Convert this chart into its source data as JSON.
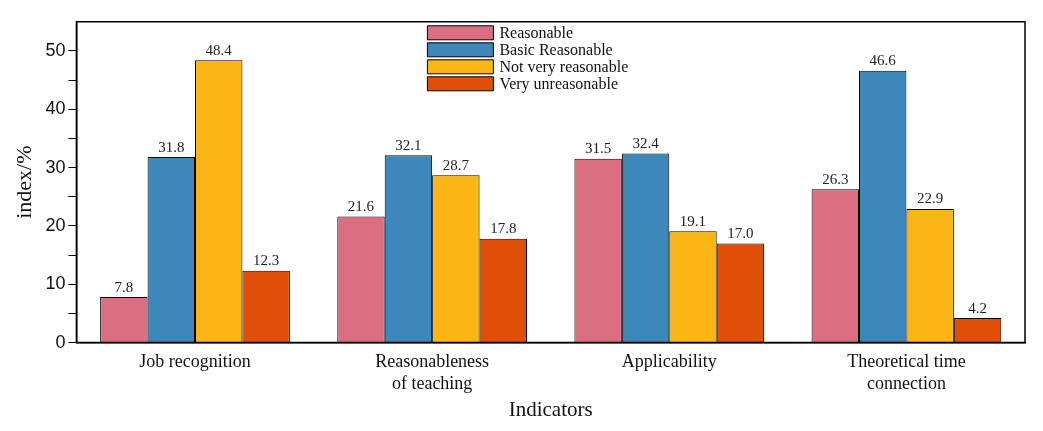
{
  "chart_data": {
    "type": "bar",
    "xlabel": "Indicators",
    "ylabel": "index/%",
    "categories": [
      "Job recognition",
      "Reasonableness of teaching",
      "Applicability",
      "Theoretical time connection"
    ],
    "series": [
      {
        "name": "Reasonable",
        "color": "#dc6e82",
        "values": [
          7.8,
          21.6,
          31.5,
          26.3
        ],
        "value_labels": [
          "7.8",
          "21.6",
          "31.5",
          "26.3"
        ]
      },
      {
        "name": "Basic Reasonable",
        "color": "#3d88ba",
        "values": [
          31.8,
          32.1,
          32.4,
          46.6
        ],
        "value_labels": [
          "31.8",
          "32.1",
          "32.4",
          "46.6"
        ]
      },
      {
        "name": "Not very reasonable",
        "color": "#fbb514",
        "values": [
          48.4,
          28.7,
          19.1,
          22.9
        ],
        "value_labels": [
          "48.4",
          "28.7",
          "19.1",
          "22.9"
        ]
      },
      {
        "name": "Very unreasonable",
        "color": "#e04e08",
        "values": [
          12.3,
          17.8,
          17.0,
          4.2
        ],
        "value_labels": [
          "12.3",
          "17.8",
          "17.0",
          "4.2"
        ]
      }
    ],
    "ylim": [
      0,
      55
    ],
    "yticks": [
      0,
      {
        "value": 5,
        "label": null
      },
      10,
      {
        "value": 15,
        "label": null
      },
      20,
      {
        "value": 25,
        "label": null
      },
      30,
      {
        "value": 35,
        "label": null
      },
      40,
      {
        "value": 45,
        "label": null
      },
      50
    ],
    "legend": "top",
    "grid": false
  }
}
